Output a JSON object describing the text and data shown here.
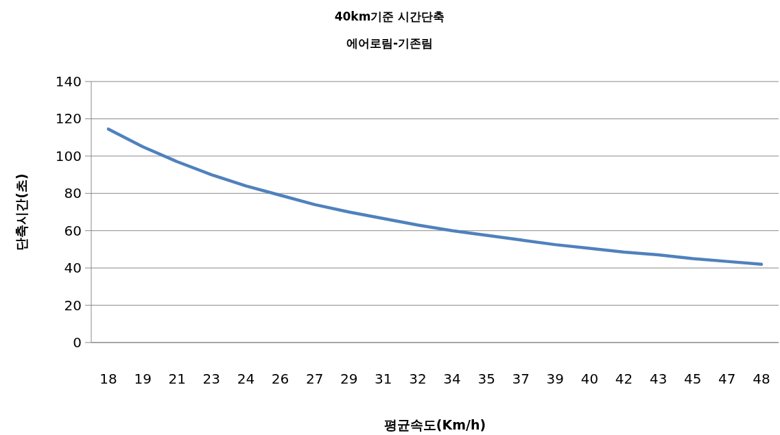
{
  "chart_data": {
    "type": "line",
    "title": "40km기준 시간단축",
    "subtitle": "에어로림-기존림",
    "xlabel": "평균속도(Km/h)",
    "ylabel": "단축시간(초)",
    "categories": [
      "18",
      "19",
      "21",
      "23",
      "24",
      "26",
      "27",
      "29",
      "31",
      "32",
      "34",
      "35",
      "37",
      "39",
      "40",
      "42",
      "43",
      "45",
      "47",
      "48"
    ],
    "series": [
      {
        "color": "#4f81bd",
        "values": [
          114.5,
          105,
          97,
          90,
          84,
          79,
          74,
          70,
          66.5,
          63,
          60,
          57.5,
          55,
          52.5,
          50.5,
          48.5,
          47,
          45,
          43.5,
          42
        ]
      }
    ],
    "ylim": [
      0,
      140
    ],
    "yticks": [
      0,
      20,
      40,
      60,
      80,
      100,
      120,
      140
    ],
    "grid": "y"
  }
}
